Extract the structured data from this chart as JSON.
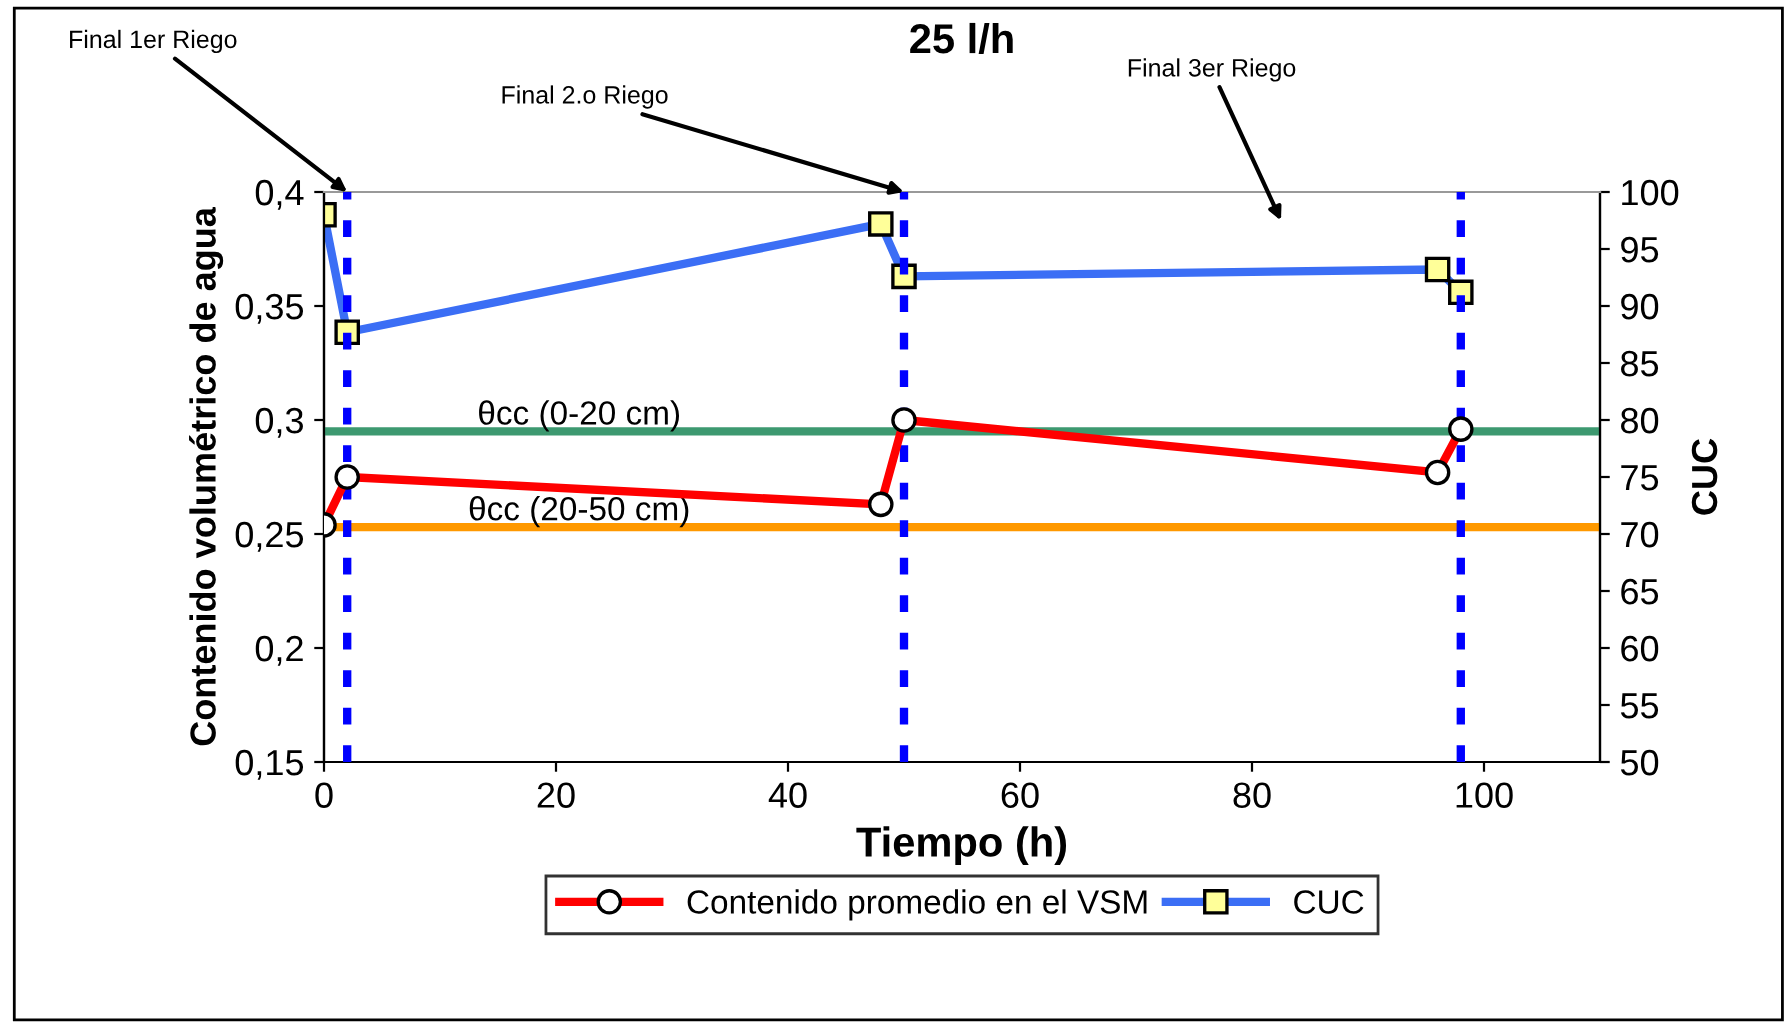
{
  "chart_data": {
    "type": "line",
    "title": "25 l/h",
    "xlabel": "Tiempo (h)",
    "ylabel": "Contenido volumétrico de agua",
    "y2label": "CUC",
    "xlim": [
      0,
      110
    ],
    "xticks": [
      0,
      20,
      40,
      60,
      80,
      100
    ],
    "ylim": [
      0.15,
      0.4
    ],
    "yticks": [
      {
        "value": 0.15,
        "label": "0,15"
      },
      {
        "value": 0.2,
        "label": "0,2"
      },
      {
        "value": 0.25,
        "label": "0,25"
      },
      {
        "value": 0.3,
        "label": "0,3"
      },
      {
        "value": 0.35,
        "label": "0,35"
      },
      {
        "value": 0.4,
        "label": "0,4"
      }
    ],
    "y2lim": [
      50,
      100
    ],
    "y2ticks": [
      50,
      55,
      60,
      65,
      70,
      75,
      80,
      85,
      90,
      95,
      100
    ],
    "grid": false,
    "legend": "bottom",
    "series": [
      {
        "name": "Contenido promedio en el VSM",
        "color": "#ff0000",
        "marker": "circle",
        "x": [
          0,
          2,
          48,
          50,
          96,
          98
        ],
        "values": [
          0.254,
          0.275,
          0.263,
          0.3,
          0.277,
          0.296
        ]
      },
      {
        "name": "CUC",
        "color": "#3b6ef5",
        "marker": "square",
        "axis": "y2",
        "x": [
          0,
          2,
          48,
          50,
          96,
          98
        ],
        "values": [
          98,
          87.7,
          97.2,
          92.6,
          93.2,
          91.2
        ]
      }
    ],
    "ref_lines": [
      {
        "axis": "y",
        "value": 0.295,
        "label": "θcc (0-20 cm)",
        "color": "#3d9970"
      },
      {
        "axis": "y",
        "value": 0.253,
        "label": "θcc (20-50 cm)",
        "color": "#ff9900"
      },
      {
        "axis": "x",
        "value": 2,
        "color": "#0000ff",
        "line_style": "dashed"
      },
      {
        "axis": "x",
        "value": 50,
        "color": "#0000ff",
        "line_style": "dashed"
      },
      {
        "axis": "x",
        "value": 98,
        "color": "#0000ff",
        "line_style": "dashed"
      }
    ],
    "annotations": [
      {
        "text": "Final 1er Riego",
        "x": 2,
        "y": 0.4
      },
      {
        "text": "Final 2.o Riego",
        "x": 50,
        "y": 0.4
      },
      "Final 3er Riego"
    ]
  }
}
